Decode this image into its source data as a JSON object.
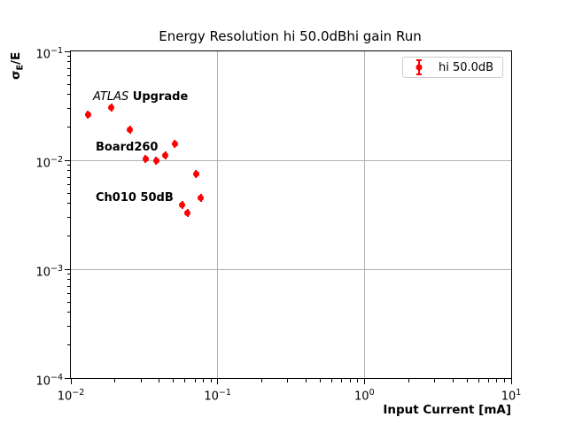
{
  "chart_data": {
    "type": "scatter",
    "title": "Energy Resolution hi 50.0dBhi gain Run",
    "xlabel": "Input Current [mA]",
    "ylabel": "σE/E",
    "ylabel_parts": {
      "sigma": "σ",
      "subscript": "E",
      "rest": "/E"
    },
    "xscale": "log",
    "yscale": "log",
    "xlim": [
      0.01,
      10
    ],
    "ylim": [
      0.0001,
      0.1
    ],
    "tick_label_base": "10",
    "x_tick_exponents": [
      -2,
      -1,
      0,
      1
    ],
    "y_tick_exponents": [
      -1,
      -2,
      -3,
      -4
    ],
    "grid": true,
    "grid_color": "#b0b0b0",
    "spine_color": "#000000",
    "annotation": {
      "line1_italic": "ATLAS",
      "line1_bold": " Upgrade",
      "line2": "Board260",
      "line3": "Ch010 50dB"
    },
    "legend": {
      "position": "upper right",
      "entries": [
        {
          "label": "hi 50.0dB",
          "color": "#ff0000",
          "marker": "errorbar-circle"
        }
      ]
    },
    "series": [
      {
        "name": "hi 50.0dB",
        "color": "#ff0000",
        "marker": "circle",
        "points": [
          {
            "x": 0.0131,
            "y": 0.0264
          },
          {
            "x": 0.0189,
            "y": 0.0305
          },
          {
            "x": 0.0253,
            "y": 0.0189
          },
          {
            "x": 0.0323,
            "y": 0.0102
          },
          {
            "x": 0.0381,
            "y": 0.0099
          },
          {
            "x": 0.0441,
            "y": 0.0111
          },
          {
            "x": 0.0511,
            "y": 0.0141
          },
          {
            "x": 0.0574,
            "y": 0.0039
          },
          {
            "x": 0.0626,
            "y": 0.0033
          },
          {
            "x": 0.0713,
            "y": 0.0075
          },
          {
            "x": 0.0768,
            "y": 0.0045
          }
        ]
      }
    ]
  }
}
